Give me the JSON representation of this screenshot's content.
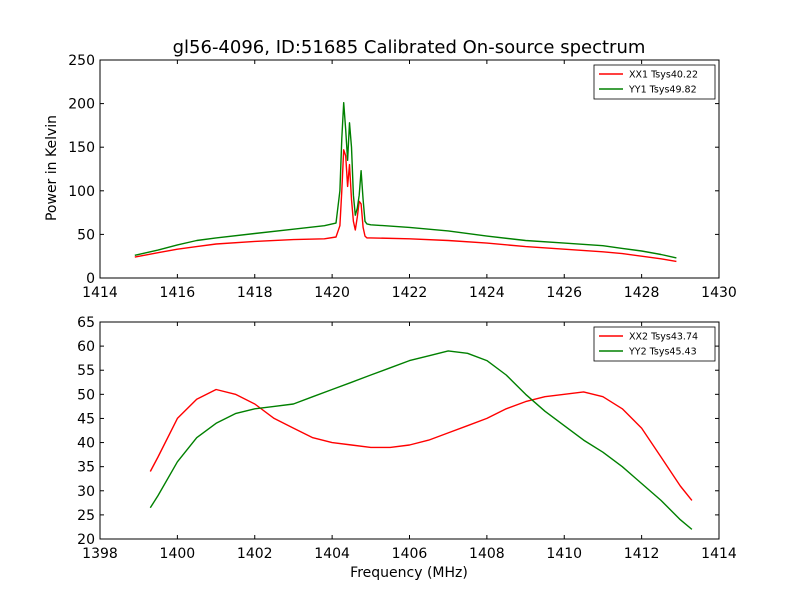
{
  "chart_data": [
    {
      "type": "line",
      "title": "gl56-4096, ID:51685 Calibrated On-source spectrum",
      "xlabel": "",
      "ylabel": "Power in Kelvin",
      "xlim": [
        1414,
        1430
      ],
      "ylim": [
        0,
        250
      ],
      "xticks": [
        "1414",
        "1416",
        "1418",
        "1420",
        "1422",
        "1424",
        "1426",
        "1428",
        "1430"
      ],
      "yticks": [
        "0",
        "50",
        "100",
        "150",
        "200",
        "250"
      ],
      "legend_position": "top-right",
      "grid": false,
      "series": [
        {
          "name": "XX1 Tsys40.22",
          "color": "#ff0000",
          "x": [
            1414.9,
            1415.5,
            1416.0,
            1416.5,
            1417.0,
            1418.0,
            1419.0,
            1419.8,
            1420.1,
            1420.2,
            1420.25,
            1420.3,
            1420.35,
            1420.4,
            1420.45,
            1420.5,
            1420.55,
            1420.6,
            1420.65,
            1420.7,
            1420.75,
            1420.8,
            1420.85,
            1420.9,
            1421.0,
            1422.0,
            1423.0,
            1424.0,
            1425.0,
            1426.0,
            1427.0,
            1427.5,
            1428.0,
            1428.5,
            1428.9
          ],
          "y": [
            24,
            29,
            33,
            36,
            39,
            42,
            44,
            45,
            47,
            60,
            100,
            147,
            140,
            105,
            130,
            90,
            65,
            55,
            70,
            88,
            85,
            58,
            48,
            46,
            46,
            45,
            43,
            40,
            36,
            33,
            30,
            28,
            25,
            22,
            19
          ]
        },
        {
          "name": "YY1 Tsys49.82",
          "color": "#008000",
          "x": [
            1414.9,
            1415.5,
            1416.0,
            1416.5,
            1417.0,
            1418.0,
            1419.0,
            1419.8,
            1420.1,
            1420.2,
            1420.25,
            1420.3,
            1420.35,
            1420.4,
            1420.45,
            1420.5,
            1420.55,
            1420.6,
            1420.65,
            1420.7,
            1420.75,
            1420.8,
            1420.85,
            1420.9,
            1421.0,
            1422.0,
            1423.0,
            1424.0,
            1425.0,
            1426.0,
            1427.0,
            1427.5,
            1428.0,
            1428.5,
            1428.9
          ],
          "y": [
            26,
            32,
            38,
            43,
            46,
            51,
            56,
            60,
            63,
            100,
            160,
            201,
            170,
            135,
            178,
            150,
            95,
            72,
            80,
            95,
            123,
            90,
            65,
            62,
            61,
            58,
            54,
            48,
            43,
            40,
            37,
            34,
            31,
            27,
            23
          ]
        }
      ]
    },
    {
      "type": "line",
      "title": "",
      "xlabel": "Frequency (MHz)",
      "ylabel": "",
      "xlim": [
        1398,
        1414
      ],
      "ylim": [
        20,
        65
      ],
      "xticks": [
        "1398",
        "1400",
        "1402",
        "1404",
        "1406",
        "1408",
        "1410",
        "1412",
        "1414"
      ],
      "yticks": [
        "20",
        "25",
        "30",
        "35",
        "40",
        "45",
        "50",
        "55",
        "60",
        "65"
      ],
      "legend_position": "top-right",
      "grid": false,
      "series": [
        {
          "name": "XX2 Tsys43.74",
          "color": "#ff0000",
          "x": [
            1399.3,
            1399.5,
            1400.0,
            1400.5,
            1401.0,
            1401.5,
            1402.0,
            1402.5,
            1403.0,
            1403.5,
            1404.0,
            1404.5,
            1405.0,
            1405.5,
            1406.0,
            1406.5,
            1407.0,
            1407.5,
            1408.0,
            1408.5,
            1409.0,
            1409.5,
            1410.0,
            1410.5,
            1411.0,
            1411.5,
            1412.0,
            1412.5,
            1413.0,
            1413.3
          ],
          "y": [
            34,
            37,
            45,
            49,
            51,
            50,
            48,
            45,
            43,
            41,
            40,
            39.5,
            39,
            39,
            39.5,
            40.5,
            42,
            43.5,
            45,
            47,
            48.5,
            49.5,
            50,
            50.5,
            49.5,
            47,
            43,
            37,
            31,
            28
          ]
        },
        {
          "name": "YY2 Tsys45.43",
          "color": "#008000",
          "x": [
            1399.3,
            1399.5,
            1400.0,
            1400.5,
            1401.0,
            1401.5,
            1402.0,
            1402.5,
            1403.0,
            1403.5,
            1404.0,
            1404.5,
            1405.0,
            1405.5,
            1406.0,
            1406.5,
            1407.0,
            1407.5,
            1408.0,
            1408.5,
            1409.0,
            1409.5,
            1410.0,
            1410.5,
            1411.0,
            1411.5,
            1412.0,
            1412.5,
            1413.0,
            1413.3
          ],
          "y": [
            26.5,
            29,
            36,
            41,
            44,
            46,
            47,
            47.5,
            48,
            49.5,
            51,
            52.5,
            54,
            55.5,
            57,
            58,
            59,
            58.5,
            57,
            54,
            50,
            46.5,
            43.5,
            40.5,
            38,
            35,
            31.5,
            28,
            24,
            22
          ]
        }
      ]
    }
  ]
}
